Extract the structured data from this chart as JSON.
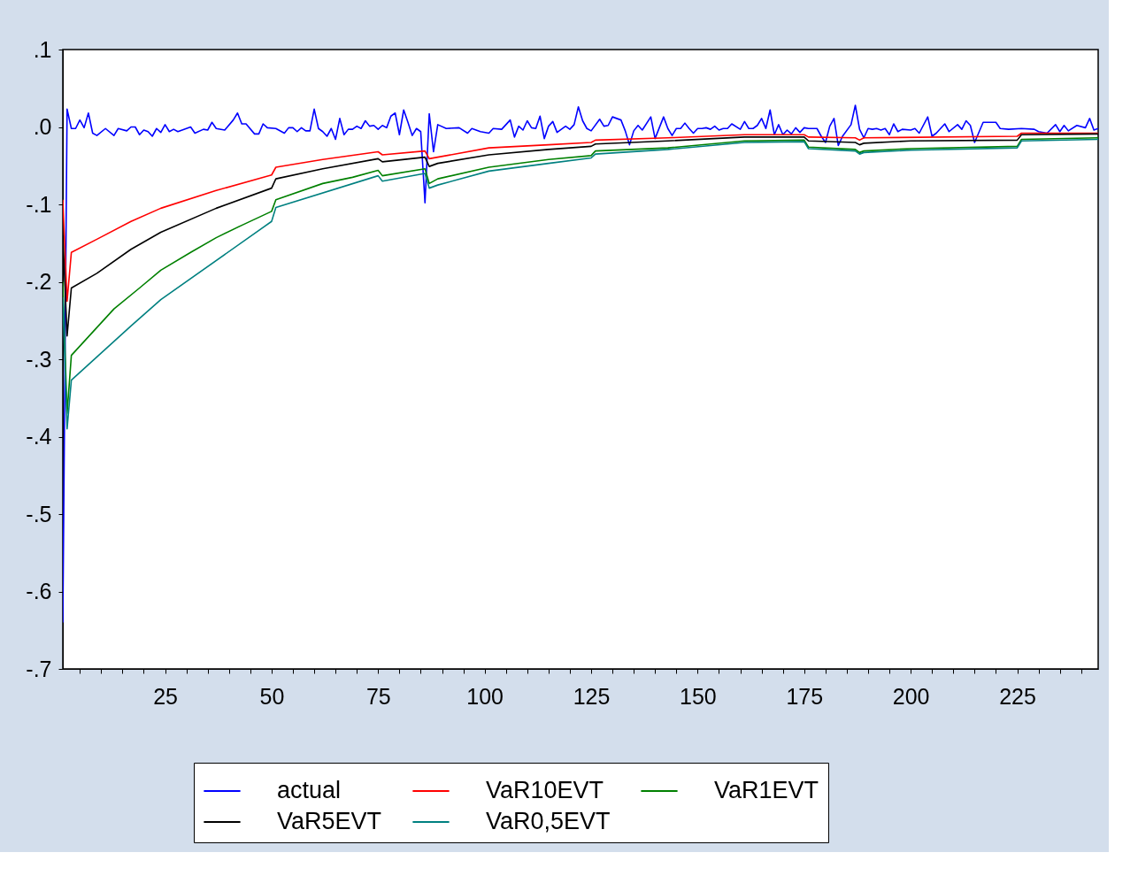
{
  "chart_data": {
    "type": "line",
    "xlim": [
      1,
      244
    ],
    "ylim": [
      -0.7,
      0.1
    ],
    "xticks": [
      {
        "value": 5,
        "label": null
      },
      {
        "value": 10,
        "label": null
      },
      {
        "value": 15,
        "label": null
      },
      {
        "value": 20,
        "label": null
      },
      25,
      {
        "value": 30,
        "label": null
      },
      {
        "value": 35,
        "label": null
      },
      {
        "value": 40,
        "label": null
      },
      {
        "value": 45,
        "label": null
      },
      50,
      {
        "value": 55,
        "label": null
      },
      {
        "value": 60,
        "label": null
      },
      {
        "value": 65,
        "label": null
      },
      {
        "value": 70,
        "label": null
      },
      75,
      {
        "value": 80,
        "label": null
      },
      {
        "value": 85,
        "label": null
      },
      {
        "value": 90,
        "label": null
      },
      {
        "value": 95,
        "label": null
      },
      100,
      {
        "value": 105,
        "label": null
      },
      {
        "value": 110,
        "label": null
      },
      {
        "value": 115,
        "label": null
      },
      {
        "value": 120,
        "label": null
      },
      125,
      {
        "value": 130,
        "label": null
      },
      {
        "value": 135,
        "label": null
      },
      {
        "value": 140,
        "label": null
      },
      {
        "value": 145,
        "label": null
      },
      150,
      {
        "value": 155,
        "label": null
      },
      {
        "value": 160,
        "label": null
      },
      {
        "value": 165,
        "label": null
      },
      {
        "value": 170,
        "label": null
      },
      175,
      {
        "value": 180,
        "label": null
      },
      {
        "value": 185,
        "label": null
      },
      {
        "value": 190,
        "label": null
      },
      {
        "value": 195,
        "label": null
      },
      200,
      {
        "value": 205,
        "label": null
      },
      {
        "value": 210,
        "label": null
      },
      {
        "value": 215,
        "label": null
      },
      {
        "value": 220,
        "label": null
      },
      225,
      {
        "value": 230,
        "label": null
      },
      {
        "value": 235,
        "label": null
      },
      {
        "value": 240,
        "label": null
      }
    ],
    "yticks": [
      {
        "value": 0.1,
        "label": ".1"
      },
      {
        "value": 0,
        "label": ".0"
      },
      {
        "value": -0.1,
        "label": "-.1"
      },
      {
        "value": -0.2,
        "label": "-.2"
      },
      {
        "value": -0.3,
        "label": "-.3"
      },
      {
        "value": -0.4,
        "label": "-.4"
      },
      {
        "value": -0.5,
        "label": "-.5"
      },
      {
        "value": -0.6,
        "label": "-.6"
      },
      {
        "value": -0.7,
        "label": "-.7"
      }
    ],
    "grid": false,
    "legend": "bottom",
    "marker": "none",
    "line_style": "solid",
    "series": [
      {
        "name": "actual",
        "color": "#0000ff",
        "x": [
          1,
          2,
          3,
          4,
          5,
          6,
          7,
          8,
          9,
          11,
          13,
          14,
          16,
          17,
          18,
          19,
          20,
          21,
          22,
          23,
          24,
          25,
          26,
          27,
          28,
          31,
          32,
          34,
          35,
          36,
          37,
          39,
          41,
          42,
          43,
          44,
          46,
          47,
          48,
          49,
          51,
          53,
          54,
          55,
          56,
          57,
          58,
          59,
          60,
          61,
          62,
          63,
          64,
          65,
          66,
          67,
          68,
          69,
          70,
          71,
          72,
          73,
          74,
          75,
          76,
          77,
          78,
          79,
          80,
          81,
          82,
          83,
          84,
          85,
          86,
          87,
          88,
          89,
          91,
          94,
          96,
          97,
          99,
          101,
          102,
          104,
          106,
          107,
          108,
          109,
          110,
          111,
          112,
          113,
          114,
          115,
          116,
          117,
          119,
          120,
          121,
          122,
          123,
          124,
          125,
          127,
          128,
          129,
          130,
          131,
          132,
          133,
          134,
          135,
          136,
          137,
          139,
          140,
          142,
          143,
          144,
          145,
          146,
          147,
          148,
          149,
          150,
          151,
          152,
          153,
          154,
          155,
          156,
          157,
          158,
          160,
          161,
          162,
          163,
          164,
          165,
          166,
          167,
          168,
          169,
          170,
          171,
          172,
          173,
          174,
          175,
          176,
          178,
          179,
          180,
          181,
          182,
          183,
          184,
          186,
          187,
          188,
          189,
          190,
          191,
          192,
          193,
          194,
          195,
          196,
          197,
          198,
          200,
          201,
          202,
          204,
          205,
          206,
          208,
          209,
          211,
          212,
          213,
          214,
          215,
          217,
          220,
          221,
          223,
          226,
          229,
          230,
          232,
          234,
          235,
          236,
          237,
          239,
          241,
          242,
          243,
          244
        ],
        "values": [
          -0.64,
          0.023,
          -0.002,
          -0.002,
          0.009,
          -0.001,
          0.018,
          -0.008,
          -0.011,
          -0.002,
          -0.011,
          -0.002,
          -0.005,
          0.0,
          0.0,
          -0.01,
          -0.004,
          -0.006,
          -0.012,
          -0.002,
          -0.007,
          0.003,
          -0.006,
          -0.003,
          -0.006,
          0.0,
          -0.008,
          -0.003,
          -0.004,
          0.006,
          -0.002,
          -0.004,
          0.009,
          0.018,
          0.004,
          0.004,
          -0.009,
          -0.009,
          0.004,
          -0.001,
          -0.002,
          -0.008,
          -0.001,
          -0.001,
          -0.006,
          -0.001,
          -0.005,
          -0.005,
          0.023,
          -0.002,
          -0.006,
          -0.012,
          -0.002,
          -0.016,
          0.011,
          -0.01,
          -0.003,
          -0.003,
          0.001,
          -0.002,
          0.008,
          0.001,
          0.002,
          -0.003,
          0.002,
          -0.001,
          0.014,
          0.018,
          -0.01,
          0.022,
          0.006,
          -0.011,
          -0.002,
          -0.006,
          -0.098,
          0.017,
          -0.032,
          0.003,
          -0.002,
          -0.001,
          -0.008,
          -0.002,
          -0.006,
          -0.008,
          -0.002,
          -0.003,
          0.009,
          -0.013,
          0.001,
          -0.004,
          0.008,
          -0.001,
          -0.002,
          0.014,
          -0.015,
          0.001,
          0.007,
          -0.007,
          0.001,
          -0.003,
          0.003,
          0.026,
          0.008,
          -0.002,
          -0.005,
          0.01,
          0.001,
          0.002,
          0.013,
          0.011,
          0.009,
          -0.005,
          -0.023,
          -0.005,
          0.002,
          -0.004,
          0.013,
          -0.015,
          0.013,
          -0.002,
          -0.011,
          -0.002,
          -0.002,
          0.005,
          -0.002,
          -0.008,
          -0.002,
          -0.002,
          -0.001,
          -0.003,
          0.001,
          -0.004,
          -0.002,
          -0.002,
          0.004,
          -0.003,
          0.007,
          -0.002,
          -0.002,
          0.002,
          0.011,
          -0.002,
          0.022,
          -0.01,
          0.003,
          -0.01,
          -0.004,
          -0.009,
          -0.001,
          -0.007,
          -0.001,
          -0.002,
          -0.002,
          -0.012,
          -0.02,
          0.001,
          0.011,
          -0.024,
          -0.012,
          0.003,
          0.028,
          -0.003,
          -0.014,
          -0.002,
          -0.003,
          -0.002,
          -0.004,
          -0.002,
          -0.01,
          0.004,
          -0.006,
          -0.003,
          -0.004,
          -0.002,
          -0.008,
          0.013,
          -0.012,
          -0.008,
          0.004,
          -0.006,
          0.003,
          -0.003,
          0.008,
          0.002,
          -0.02,
          0.006,
          0.006,
          -0.002,
          -0.003,
          -0.002,
          -0.003,
          -0.006,
          -0.008,
          0.003,
          -0.006,
          0.002,
          -0.005,
          0.002,
          -0.001,
          0.011,
          -0.004,
          -0.002
        ]
      },
      {
        "name": "VaR10EVT",
        "color": "#ff0000",
        "x": [
          1,
          2,
          3,
          9,
          17,
          24,
          37,
          50,
          51,
          62,
          75,
          76,
          86,
          87,
          89,
          101,
          115,
          125,
          126,
          143,
          161,
          175,
          176,
          187,
          188,
          189,
          225,
          226,
          244
        ],
        "values": [
          -0.094,
          -0.225,
          -0.162,
          -0.145,
          -0.122,
          -0.105,
          -0.082,
          -0.062,
          -0.052,
          -0.042,
          -0.032,
          -0.036,
          -0.031,
          -0.041,
          -0.039,
          -0.027,
          -0.023,
          -0.02,
          -0.017,
          -0.014,
          -0.01,
          -0.01,
          -0.013,
          -0.014,
          -0.017,
          -0.014,
          -0.012,
          -0.008,
          -0.008
        ]
      },
      {
        "name": "VaR1EVT",
        "color": "#008000",
        "x": [
          1,
          2,
          3,
          8,
          13,
          19,
          24,
          31,
          37,
          43,
          50,
          51,
          62,
          69,
          75,
          76,
          86,
          87,
          89,
          101,
          115,
          125,
          126,
          143,
          161,
          175,
          176,
          187,
          188,
          189,
          200,
          225,
          226,
          244
        ],
        "values": [
          -0.2,
          -0.37,
          -0.295,
          -0.265,
          -0.235,
          -0.208,
          -0.185,
          -0.162,
          -0.143,
          -0.127,
          -0.109,
          -0.094,
          -0.073,
          -0.065,
          -0.056,
          -0.063,
          -0.054,
          -0.073,
          -0.067,
          -0.052,
          -0.042,
          -0.037,
          -0.031,
          -0.027,
          -0.018,
          -0.017,
          -0.026,
          -0.029,
          -0.033,
          -0.031,
          -0.028,
          -0.025,
          -0.016,
          -0.014
        ]
      },
      {
        "name": "VaR5EVT",
        "color": "#000000",
        "x": [
          1,
          2,
          3,
          9,
          17,
          24,
          37,
          50,
          51,
          62,
          75,
          76,
          86,
          87,
          89,
          101,
          115,
          125,
          126,
          143,
          161,
          175,
          176,
          187,
          188,
          189,
          200,
          225,
          226,
          244
        ],
        "values": [
          -0.14,
          -0.27,
          -0.208,
          -0.189,
          -0.158,
          -0.136,
          -0.105,
          -0.079,
          -0.067,
          -0.054,
          -0.041,
          -0.045,
          -0.039,
          -0.051,
          -0.047,
          -0.036,
          -0.029,
          -0.025,
          -0.022,
          -0.018,
          -0.013,
          -0.013,
          -0.018,
          -0.02,
          -0.023,
          -0.021,
          -0.018,
          -0.017,
          -0.01,
          -0.009
        ]
      },
      {
        "name": "VaR0,5EVT",
        "color": "#008080",
        "x": [
          1,
          2,
          3,
          9,
          17,
          24,
          50,
          51,
          75,
          76,
          86,
          87,
          89,
          101,
          115,
          125,
          126,
          143,
          161,
          175,
          176,
          187,
          188,
          189,
          200,
          225,
          226,
          244
        ],
        "values": [
          -0.22,
          -0.39,
          -0.327,
          -0.297,
          -0.257,
          -0.223,
          -0.122,
          -0.104,
          -0.063,
          -0.07,
          -0.06,
          -0.079,
          -0.075,
          -0.057,
          -0.047,
          -0.04,
          -0.035,
          -0.029,
          -0.02,
          -0.019,
          -0.028,
          -0.031,
          -0.035,
          -0.033,
          -0.03,
          -0.027,
          -0.018,
          -0.016
        ]
      }
    ]
  }
}
